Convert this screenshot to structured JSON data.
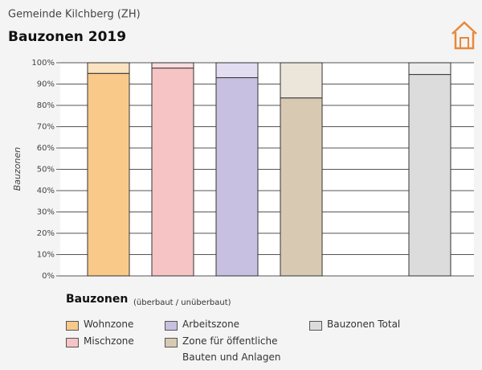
{
  "chart_data": {
    "type": "stacked_bar",
    "supertitle": "Gemeinde Kilchberg (ZH)",
    "title": "Bauzonen 2019",
    "ylabel": "Bauzonen",
    "legend_title": "Bauzonen",
    "legend_subtitle": "(überbaut / unüberbaut)",
    "categories": [
      "Wohnzone",
      "Mischzone",
      "Arbeitszone",
      "Zone für öffentliche Bauten und Anlagen",
      null,
      "Bauzonen Total"
    ],
    "series": [
      {
        "values": [
          95,
          97.5,
          93,
          83.5,
          null,
          94.5
        ],
        "colors": [
          "#f9c98a",
          "#f7c4c6",
          "#c8c0e0",
          "#d8cab2",
          null,
          "#dcdcdc"
        ]
      },
      {
        "values": [
          5,
          2.5,
          7,
          16.5,
          null,
          5.5
        ],
        "colors": [
          "#fbe2c0",
          "#fadcdd",
          "#e2ddf0",
          "#ebe5da",
          null,
          "#ececec"
        ]
      }
    ],
    "ylim": [
      0,
      100
    ],
    "yticks": [
      {
        "value": 0,
        "label": "0%"
      },
      {
        "value": 10,
        "label": "10%"
      },
      {
        "value": 20,
        "label": "20%"
      },
      {
        "value": 30,
        "label": "30%"
      },
      {
        "value": 40,
        "label": "40%"
      },
      {
        "value": 50,
        "label": "50%"
      },
      {
        "value": 60,
        "label": "60%"
      },
      {
        "value": 70,
        "label": "70%"
      },
      {
        "value": 80,
        "label": "80%"
      },
      {
        "value": 90,
        "label": "90%"
      },
      {
        "value": 100,
        "label": "100%"
      }
    ],
    "grid": true
  }
}
